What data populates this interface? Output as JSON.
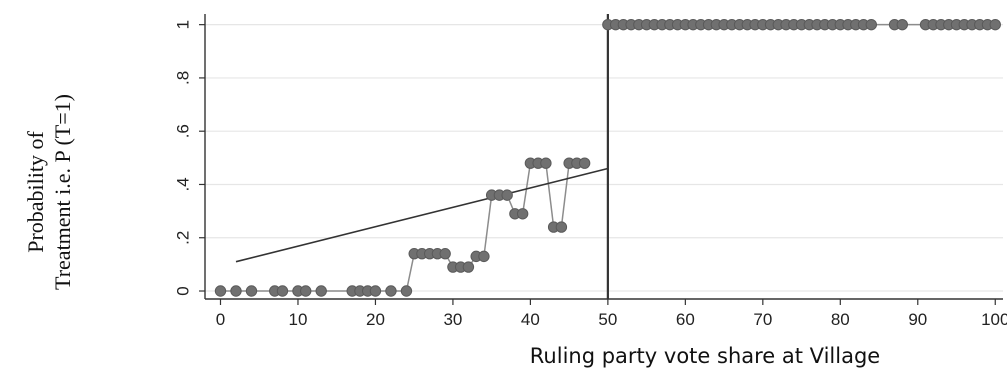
{
  "chart_data": {
    "type": "scatter",
    "title": "",
    "xlabel": "Ruling party vote share at Village",
    "ylabel_lines": [
      "Probability of",
      "Treatment i.e. P (T=1)"
    ],
    "xlim": [
      -2,
      101
    ],
    "ylim": [
      -0.03,
      1.04
    ],
    "xticks": [
      0,
      10,
      20,
      30,
      40,
      50,
      60,
      70,
      80,
      90,
      100
    ],
    "xtick_labels": [
      "0",
      "10",
      "20",
      "30",
      "40",
      "50",
      "60",
      "70",
      "80",
      "90",
      "100"
    ],
    "yticks": [
      0,
      0.2,
      0.4,
      0.6,
      0.8,
      1
    ],
    "ytick_labels": [
      "0",
      ".2",
      ".4",
      ".6",
      ".8",
      "1"
    ],
    "grid": true,
    "cutoff": 50,
    "colors": {
      "points": "#707070",
      "point_edge": "#5a5a5a",
      "connector": "#8c8c8c",
      "fit": "#333333",
      "cutoff": "#333333",
      "grid": "#e6e6e6"
    },
    "points": [
      {
        "x": 0,
        "y": 0
      },
      {
        "x": 2,
        "y": 0
      },
      {
        "x": 4,
        "y": 0
      },
      {
        "x": 7,
        "y": 0
      },
      {
        "x": 8,
        "y": 0
      },
      {
        "x": 10,
        "y": 0
      },
      {
        "x": 11,
        "y": 0
      },
      {
        "x": 13,
        "y": 0
      },
      {
        "x": 17,
        "y": 0
      },
      {
        "x": 18,
        "y": 0
      },
      {
        "x": 19,
        "y": 0
      },
      {
        "x": 20,
        "y": 0
      },
      {
        "x": 22,
        "y": 0
      },
      {
        "x": 24,
        "y": 0
      },
      {
        "x": 25,
        "y": 0.14
      },
      {
        "x": 26,
        "y": 0.14
      },
      {
        "x": 27,
        "y": 0.14
      },
      {
        "x": 28,
        "y": 0.14
      },
      {
        "x": 29,
        "y": 0.14
      },
      {
        "x": 30,
        "y": 0.09
      },
      {
        "x": 31,
        "y": 0.09
      },
      {
        "x": 32,
        "y": 0.09
      },
      {
        "x": 33,
        "y": 0.13
      },
      {
        "x": 34,
        "y": 0.13
      },
      {
        "x": 35,
        "y": 0.36
      },
      {
        "x": 36,
        "y": 0.36
      },
      {
        "x": 37,
        "y": 0.36
      },
      {
        "x": 38,
        "y": 0.29
      },
      {
        "x": 39,
        "y": 0.29
      },
      {
        "x": 40,
        "y": 0.48
      },
      {
        "x": 41,
        "y": 0.48
      },
      {
        "x": 42,
        "y": 0.48
      },
      {
        "x": 43,
        "y": 0.24
      },
      {
        "x": 44,
        "y": 0.24
      },
      {
        "x": 45,
        "y": 0.48
      },
      {
        "x": 46,
        "y": 0.48
      },
      {
        "x": 47,
        "y": 0.48
      },
      {
        "x": 50,
        "y": 1
      },
      {
        "x": 51,
        "y": 1
      },
      {
        "x": 52,
        "y": 1
      },
      {
        "x": 53,
        "y": 1
      },
      {
        "x": 54,
        "y": 1
      },
      {
        "x": 55,
        "y": 1
      },
      {
        "x": 56,
        "y": 1
      },
      {
        "x": 57,
        "y": 1
      },
      {
        "x": 58,
        "y": 1
      },
      {
        "x": 59,
        "y": 1
      },
      {
        "x": 60,
        "y": 1
      },
      {
        "x": 61,
        "y": 1
      },
      {
        "x": 62,
        "y": 1
      },
      {
        "x": 63,
        "y": 1
      },
      {
        "x": 64,
        "y": 1
      },
      {
        "x": 65,
        "y": 1
      },
      {
        "x": 66,
        "y": 1
      },
      {
        "x": 67,
        "y": 1
      },
      {
        "x": 68,
        "y": 1
      },
      {
        "x": 69,
        "y": 1
      },
      {
        "x": 70,
        "y": 1
      },
      {
        "x": 71,
        "y": 1
      },
      {
        "x": 72,
        "y": 1
      },
      {
        "x": 73,
        "y": 1
      },
      {
        "x": 74,
        "y": 1
      },
      {
        "x": 75,
        "y": 1
      },
      {
        "x": 76,
        "y": 1
      },
      {
        "x": 77,
        "y": 1
      },
      {
        "x": 78,
        "y": 1
      },
      {
        "x": 79,
        "y": 1
      },
      {
        "x": 80,
        "y": 1
      },
      {
        "x": 81,
        "y": 1
      },
      {
        "x": 82,
        "y": 1
      },
      {
        "x": 83,
        "y": 1
      },
      {
        "x": 84,
        "y": 1
      },
      {
        "x": 87,
        "y": 1
      },
      {
        "x": 88,
        "y": 1
      },
      {
        "x": 91,
        "y": 1
      },
      {
        "x": 92,
        "y": 1
      },
      {
        "x": 93,
        "y": 1
      },
      {
        "x": 94,
        "y": 1
      },
      {
        "x": 95,
        "y": 1
      },
      {
        "x": 96,
        "y": 1
      },
      {
        "x": 97,
        "y": 1
      },
      {
        "x": 98,
        "y": 1
      },
      {
        "x": 99,
        "y": 1
      },
      {
        "x": 100,
        "y": 1
      }
    ],
    "connector_segments": [
      {
        "x": [
          0,
          24
        ],
        "y": [
          0,
          0
        ]
      },
      {
        "x": [
          24,
          25
        ],
        "y": [
          0,
          0.14
        ]
      },
      {
        "x": [
          29,
          30
        ],
        "y": [
          0.14,
          0.09
        ]
      },
      {
        "x": [
          32,
          33
        ],
        "y": [
          0.09,
          0.13
        ]
      },
      {
        "x": [
          34,
          35
        ],
        "y": [
          0.13,
          0.36
        ]
      },
      {
        "x": [
          37,
          38
        ],
        "y": [
          0.36,
          0.29
        ]
      },
      {
        "x": [
          39,
          40
        ],
        "y": [
          0.29,
          0.48
        ]
      },
      {
        "x": [
          42,
          43
        ],
        "y": [
          0.48,
          0.24
        ]
      },
      {
        "x": [
          44,
          45
        ],
        "y": [
          0.24,
          0.48
        ]
      }
    ],
    "fit_lines": [
      {
        "name": "",
        "x": [
          2,
          50
        ],
        "y": [
          0.11,
          0.46
        ]
      }
    ]
  }
}
